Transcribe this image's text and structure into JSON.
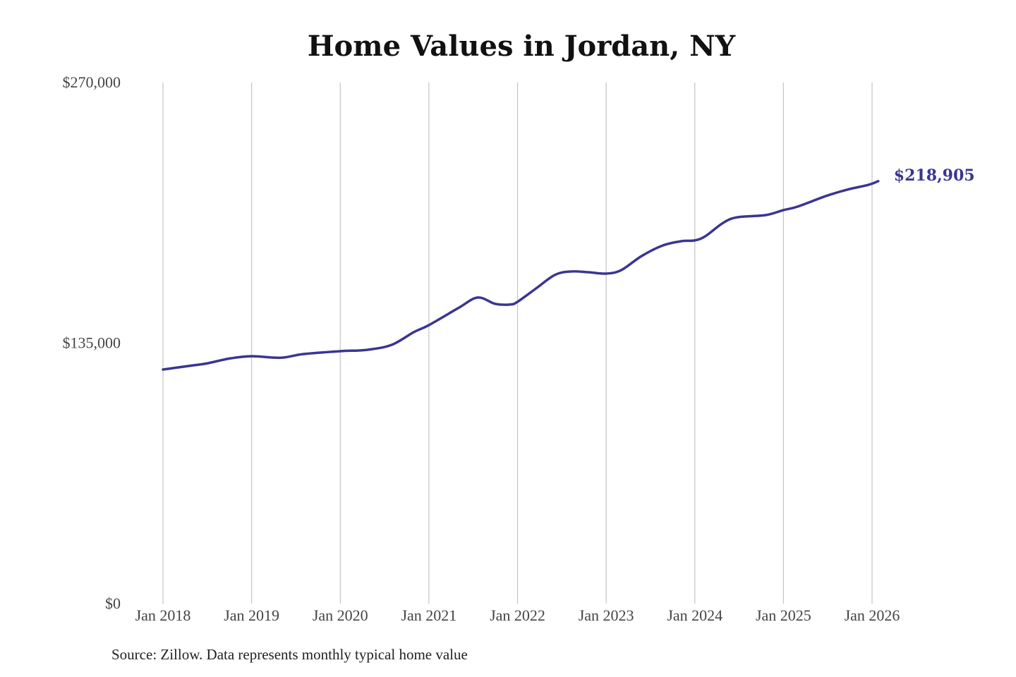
{
  "chart_data": {
    "type": "line",
    "title": "Home Values in Jordan, NY",
    "xlabel": "",
    "ylabel": "",
    "ylim": [
      0,
      270000
    ],
    "yticks": [
      {
        "value": 0,
        "label": "$0"
      },
      {
        "value": 135000,
        "label": "$135,000"
      },
      {
        "value": 270000,
        "label": "$270,000"
      }
    ],
    "xticks": [
      {
        "value": 2018,
        "label": "Jan 2018"
      },
      {
        "value": 2019,
        "label": "Jan 2019"
      },
      {
        "value": 2020,
        "label": "Jan 2020"
      },
      {
        "value": 2021,
        "label": "Jan 2021"
      },
      {
        "value": 2022,
        "label": "Jan 2022"
      },
      {
        "value": 2023,
        "label": "Jan 2023"
      },
      {
        "value": 2024,
        "label": "Jan 2024"
      },
      {
        "value": 2025,
        "label": "Jan 2025"
      },
      {
        "value": 2026,
        "label": "Jan 2026"
      }
    ],
    "grid": "vertical",
    "series": [
      {
        "name": "Typical home value",
        "color": "#3a3592",
        "x": [
          2018.0,
          2018.33,
          2018.5,
          2018.75,
          2019.0,
          2019.33,
          2019.58,
          2020.0,
          2020.3,
          2020.58,
          2020.83,
          2021.0,
          2021.33,
          2021.55,
          2021.75,
          2021.92,
          2022.0,
          2022.2,
          2022.42,
          2022.6,
          2022.8,
          2023.0,
          2023.17,
          2023.4,
          2023.64,
          2023.85,
          2024.0,
          2024.12,
          2024.32,
          2024.48,
          2024.8,
          2025.0,
          2025.16,
          2025.48,
          2025.72,
          2025.96,
          2026.07
        ],
        "values": [
          121300,
          123400,
          124500,
          127000,
          128200,
          127400,
          129300,
          130800,
          131500,
          134100,
          140700,
          144300,
          153100,
          158600,
          155300,
          155000,
          156400,
          163000,
          170300,
          172100,
          171700,
          171000,
          172800,
          180100,
          185600,
          187800,
          188200,
          190400,
          197300,
          200200,
          201300,
          203900,
          205700,
          211200,
          214500,
          217000,
          218905
        ]
      }
    ],
    "annotations": [
      {
        "label": "$218,905",
        "x": 2026.07,
        "y": 218905
      }
    ]
  },
  "source": "Source: Zillow. Data represents monthly typical home value"
}
